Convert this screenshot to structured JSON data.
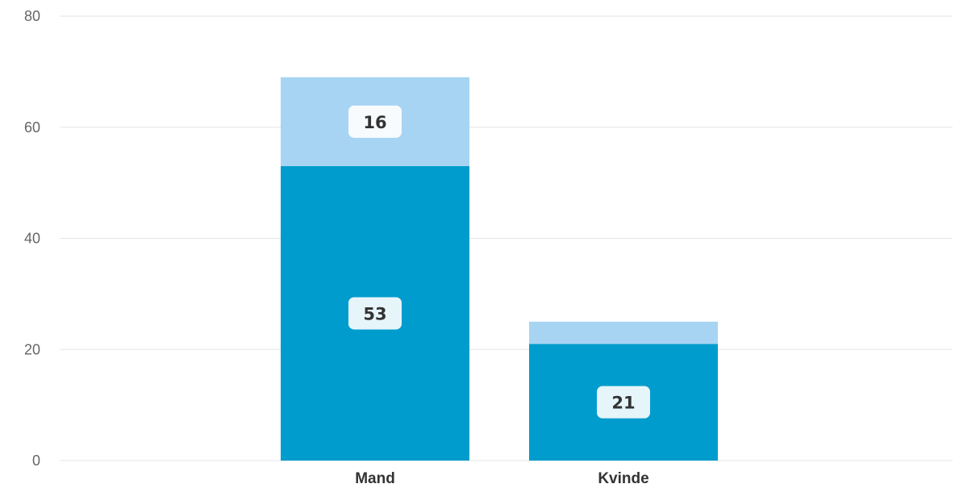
{
  "chart_data": {
    "type": "bar",
    "stacked": true,
    "categories": [
      "Mand",
      "Kvinde"
    ],
    "series": [
      {
        "values": [
          53,
          21
        ],
        "color": "#009ccd",
        "data_labels": [
          "53",
          "21"
        ]
      },
      {
        "values": [
          16,
          4
        ],
        "color": "#a8d4f3",
        "data_labels": [
          "16",
          ""
        ]
      }
    ],
    "ylim": [
      0,
      80
    ],
    "yticks": [
      0,
      20,
      40,
      60,
      80
    ],
    "grid": true,
    "legend": "none",
    "colors": {
      "gridline": "#e6e6e6",
      "label_box": "#ffffff",
      "text": "#333333",
      "tick_text": "#666666"
    }
  }
}
